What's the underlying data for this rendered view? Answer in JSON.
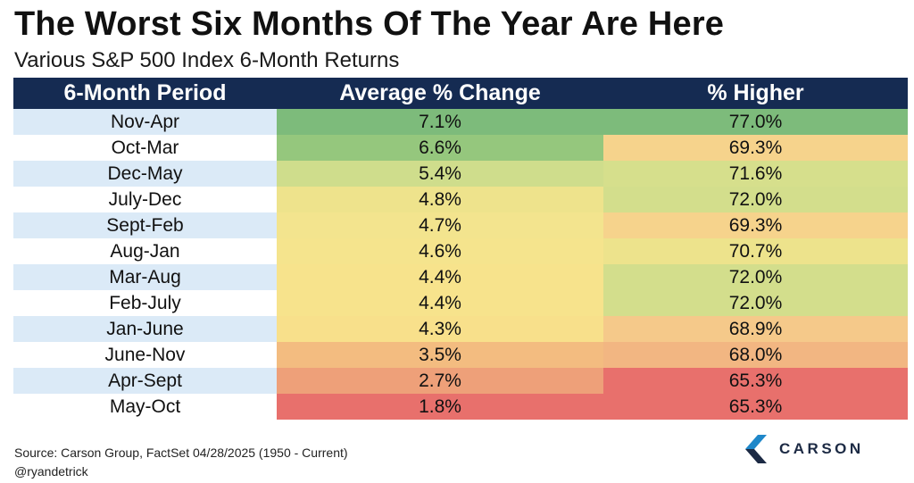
{
  "header": {
    "title": "The Worst Six Months Of The Year Are Here",
    "subtitle": "Various S&P 500 Index 6-Month Returns"
  },
  "chart_data": {
    "type": "table",
    "columns": [
      "6-Month Period",
      "Average % Change",
      "% Higher"
    ],
    "rows": [
      {
        "period": "Nov-Apr",
        "avg_change": "7.1%",
        "pct_higher": "77.0%",
        "avg_color": "#7dbb7b",
        "higher_color": "#7dbb7b"
      },
      {
        "period": "Oct-Mar",
        "avg_change": "6.6%",
        "pct_higher": "69.3%",
        "avg_color": "#95c77d",
        "higher_color": "#f6d38c"
      },
      {
        "period": "Dec-May",
        "avg_change": "5.4%",
        "pct_higher": "71.6%",
        "avg_color": "#cfdd8c",
        "higher_color": "#d6df8c"
      },
      {
        "period": "July-Dec",
        "avg_change": "4.8%",
        "pct_higher": "72.0%",
        "avg_color": "#eee38c",
        "higher_color": "#d3de8c"
      },
      {
        "period": "Sept-Feb",
        "avg_change": "4.7%",
        "pct_higher": "69.3%",
        "avg_color": "#f3e48e",
        "higher_color": "#f6d38c"
      },
      {
        "period": "Aug-Jan",
        "avg_change": "4.6%",
        "pct_higher": "70.7%",
        "avg_color": "#f5e48d",
        "higher_color": "#ede38c"
      },
      {
        "period": "Mar-Aug",
        "avg_change": "4.4%",
        "pct_higher": "72.0%",
        "avg_color": "#f7e38c",
        "higher_color": "#d3de8c"
      },
      {
        "period": "Feb-July",
        "avg_change": "4.4%",
        "pct_higher": "72.0%",
        "avg_color": "#f7e38c",
        "higher_color": "#d3de8c"
      },
      {
        "period": "Jan-June",
        "avg_change": "4.3%",
        "pct_higher": "68.9%",
        "avg_color": "#f8e08b",
        "higher_color": "#f5c98a"
      },
      {
        "period": "June-Nov",
        "avg_change": "3.5%",
        "pct_higher": "68.0%",
        "avg_color": "#f3bc80",
        "higher_color": "#f2b682"
      },
      {
        "period": "Apr-Sept",
        "avg_change": "2.7%",
        "pct_higher": "65.3%",
        "avg_color": "#eea079",
        "higher_color": "#e8706c"
      },
      {
        "period": "May-Oct",
        "avg_change": "1.8%",
        "pct_higher": "65.3%",
        "avg_color": "#e8706c",
        "higher_color": "#e8706c"
      }
    ]
  },
  "footer": {
    "source": "Source: Carson Group, FactSet 04/28/2025 (1950 - Current)",
    "handle": "@ryandetrick",
    "brand": "CARSON",
    "logo_icon": "carson-chevron-logo-icon"
  },
  "colors": {
    "header_bg": "#152b52",
    "period_band": "#dbeaf7",
    "logo_blue": "#1f87c9"
  }
}
